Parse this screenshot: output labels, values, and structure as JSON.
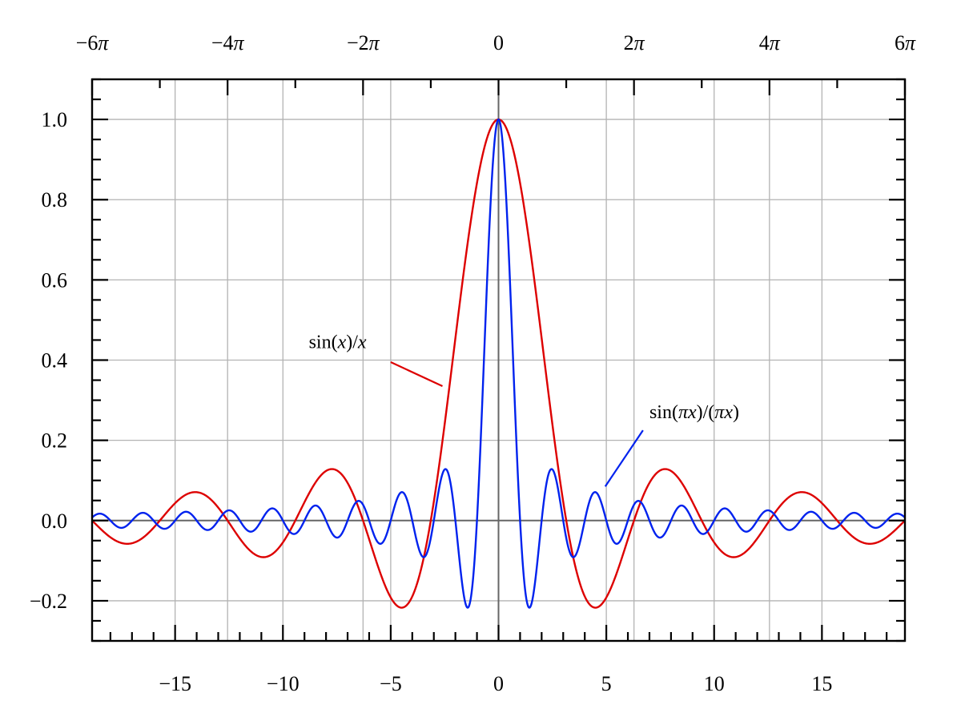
{
  "chart_data": {
    "type": "line",
    "title": "",
    "xlabel": "",
    "ylabel": "",
    "xlim": [
      -18.85,
      18.85
    ],
    "ylim": [
      -0.3,
      1.1
    ],
    "grid": true,
    "x_ticks": [
      -15,
      -10,
      -5,
      0,
      5,
      10,
      15
    ],
    "x_tick_labels": [
      "−15",
      "−10",
      "−5",
      "0",
      "5",
      "10",
      "15"
    ],
    "x_ticks_top": [
      -18.8496,
      -12.5664,
      -6.2832,
      0,
      6.2832,
      12.5664,
      18.8496
    ],
    "x_tick_labels_top": [
      "−6π",
      "−4π",
      "−2π",
      "0",
      "2π",
      "4π",
      "6π"
    ],
    "y_ticks": [
      -0.2,
      0.0,
      0.2,
      0.4,
      0.6,
      0.8,
      1.0
    ],
    "y_tick_labels": [
      "−0.2",
      "0.0",
      "0.2",
      "0.4",
      "0.6",
      "0.8",
      "1.0"
    ],
    "series": [
      {
        "name": "sin(x)/x",
        "color": "#dd0000",
        "function": "sin(x)/x",
        "x": [
          -18.85,
          -17.0,
          -15.5,
          -14.0,
          -12.57,
          -11.0,
          -9.42,
          -7.73,
          -6.28,
          -4.49,
          -3.14,
          -1.5,
          0.0,
          1.5,
          3.14,
          4.49,
          6.28,
          7.73,
          9.42,
          11.0,
          12.57,
          14.0,
          15.5,
          17.0,
          18.85
        ],
        "y": [
          0.0,
          -0.057,
          0.013,
          0.071,
          0.0,
          -0.091,
          0.0,
          0.128,
          0.0,
          -0.217,
          0.0,
          0.665,
          1.0,
          0.665,
          0.0,
          -0.217,
          0.0,
          0.128,
          0.0,
          -0.091,
          0.0,
          0.071,
          0.013,
          -0.057,
          0.0
        ]
      },
      {
        "name": "sin(πx)/(πx)",
        "color": "#0022ee",
        "function": "sin(pi*x)/(pi*x)",
        "x": [
          -18.5,
          -17.5,
          -16.5,
          -15.5,
          -14.5,
          -13.5,
          -12.5,
          -11.5,
          -10.5,
          -9.5,
          -8.5,
          -7.5,
          -6.5,
          -5.5,
          -4.5,
          -3.5,
          -2.5,
          -1.5,
          -1.0,
          -0.5,
          0.0,
          0.5,
          1.0,
          1.5,
          2.5,
          3.5,
          4.5,
          5.5,
          6.5,
          7.5,
          8.5,
          9.5,
          10.5,
          11.5,
          12.5,
          13.5,
          14.5,
          15.5,
          16.5,
          17.5,
          18.5
        ],
        "y": [
          0.017,
          -0.018,
          0.019,
          -0.021,
          0.022,
          -0.024,
          0.025,
          -0.028,
          0.03,
          -0.034,
          0.037,
          -0.042,
          0.049,
          -0.058,
          0.071,
          -0.091,
          0.127,
          -0.212,
          0.0,
          0.637,
          1.0,
          0.637,
          0.0,
          -0.212,
          0.127,
          -0.091,
          0.071,
          -0.058,
          0.049,
          -0.042,
          0.037,
          -0.034,
          0.03,
          -0.028,
          0.025,
          -0.024,
          0.022,
          -0.021,
          0.019,
          -0.018,
          0.017
        ]
      }
    ],
    "annotations": [
      {
        "series": 0,
        "text_parts": [
          "sin(",
          "x",
          ")/",
          "x"
        ],
        "italic": [
          false,
          true,
          false,
          true
        ],
        "label_at": [
          -8.8,
          0.43
        ],
        "line_from": [
          -5.0,
          0.395
        ],
        "line_to": [
          -2.6,
          0.335
        ]
      },
      {
        "series": 1,
        "text_parts": [
          "sin(",
          "πx",
          ")/(",
          "πx",
          ")"
        ],
        "italic": [
          false,
          true,
          false,
          true,
          false
        ],
        "label_at": [
          7.0,
          0.255
        ],
        "line_from": [
          6.7,
          0.225
        ],
        "line_to": [
          4.95,
          0.085
        ]
      }
    ]
  }
}
